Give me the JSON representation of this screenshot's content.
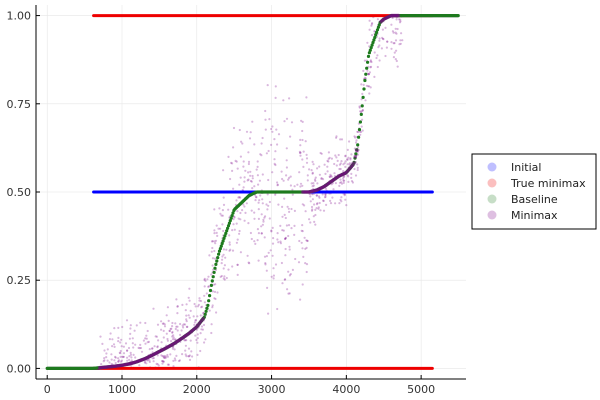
{
  "chart_data": {
    "type": "scatter",
    "title": "",
    "xlabel": "",
    "ylabel": "",
    "xlim": [
      -150,
      5600
    ],
    "ylim": [
      -0.03,
      1.03
    ],
    "x_ticks": [
      0,
      1000,
      2000,
      3000,
      4000,
      5000
    ],
    "x_tick_labels": [
      "0",
      "1000",
      "2000",
      "3000",
      "4000",
      "5000"
    ],
    "y_ticks": [
      0,
      0.25,
      0.5,
      0.75,
      1.0
    ],
    "y_tick_labels": [
      "0.00",
      "0.25",
      "0.50",
      "0.75",
      "1.00"
    ],
    "grid": true,
    "legend_position": "right",
    "series": [
      {
        "name": "Initial",
        "color": "#0000ff",
        "segments": [
          {
            "x_from": 620,
            "x_to": 5150,
            "y": 0.5
          }
        ]
      },
      {
        "name": "True minimax",
        "color": "#ee0000",
        "segments": [
          {
            "x_from": 620,
            "x_to": 5150,
            "y": 1.0
          },
          {
            "x_from": 620,
            "x_to": 5150,
            "y": 0.0
          }
        ]
      },
      {
        "name": "Baseline",
        "color": "#1e7a1e",
        "points": [
          [
            0,
            0.0
          ],
          [
            600,
            0.0
          ],
          [
            700,
            0.002
          ],
          [
            800,
            0.004
          ],
          [
            900,
            0.006
          ],
          [
            1000,
            0.009
          ],
          [
            1100,
            0.013
          ],
          [
            1200,
            0.019
          ],
          [
            1300,
            0.027
          ],
          [
            1400,
            0.037
          ],
          [
            1500,
            0.048
          ],
          [
            1600,
            0.059
          ],
          [
            1700,
            0.071
          ],
          [
            1800,
            0.085
          ],
          [
            1900,
            0.1
          ],
          [
            2000,
            0.118
          ],
          [
            2100,
            0.145
          ],
          [
            2150,
            0.18
          ],
          [
            2200,
            0.24
          ],
          [
            2250,
            0.29
          ],
          [
            2300,
            0.33
          ],
          [
            2350,
            0.36
          ],
          [
            2400,
            0.39
          ],
          [
            2450,
            0.42
          ],
          [
            2500,
            0.45
          ],
          [
            2600,
            0.47
          ],
          [
            2700,
            0.49
          ],
          [
            2800,
            0.5
          ],
          [
            3000,
            0.5
          ],
          [
            3500,
            0.5
          ],
          [
            3600,
            0.505
          ],
          [
            3700,
            0.515
          ],
          [
            3800,
            0.53
          ],
          [
            3900,
            0.545
          ],
          [
            4000,
            0.555
          ],
          [
            4100,
            0.58
          ],
          [
            4150,
            0.63
          ],
          [
            4200,
            0.72
          ],
          [
            4250,
            0.82
          ],
          [
            4300,
            0.89
          ],
          [
            4350,
            0.92
          ],
          [
            4400,
            0.95
          ],
          [
            4450,
            0.98
          ],
          [
            4500,
            0.99
          ],
          [
            4600,
            1.0
          ],
          [
            4800,
            1.0
          ],
          [
            5000,
            1.0
          ],
          [
            5500,
            1.0
          ]
        ]
      },
      {
        "name": "Minimax",
        "color": "#7a0088",
        "note_lines": [
          {
            "x_from": 0,
            "x_to": 700,
            "y": 0.0
          },
          {
            "x_from": 4600,
            "x_to": 5500,
            "y": 1.0
          }
        ],
        "clusters": [
          {
            "x_from": 700,
            "x_to": 2150,
            "y_center": "follows-baseline",
            "spread": 0.12
          },
          {
            "x_from": 2150,
            "x_to": 2900,
            "y_center": "follows-baseline",
            "spread": 0.2
          },
          {
            "x_from": 2900,
            "x_to": 3500,
            "y_center": 0.45,
            "spread": 0.35
          },
          {
            "x_from": 3500,
            "x_to": 4200,
            "y_center": "follows-baseline",
            "spread": 0.1
          },
          {
            "x_from": 4200,
            "x_to": 4750,
            "y_center": "follows-baseline",
            "spread": 0.15
          }
        ]
      }
    ]
  },
  "legend": {
    "items": [
      {
        "label": "Initial",
        "color": "#0000ff"
      },
      {
        "label": "True minimax",
        "color": "#ee0000"
      },
      {
        "label": "Baseline",
        "color": "#1e7a1e"
      },
      {
        "label": "Minimax",
        "color": "#7a0088"
      }
    ]
  }
}
